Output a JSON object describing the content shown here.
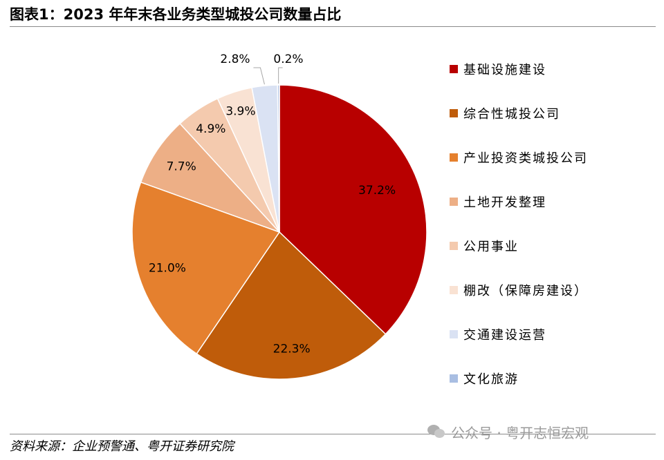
{
  "title": "图表1：2023 年年末各业务类型城投公司数量占比",
  "source": "资料来源：企业预警通、粤开证券研究院",
  "watermark": "公众号 · 粤开志恒宏观",
  "chart_data": {
    "type": "pie",
    "title": "图表1：2023 年年末各业务类型城投公司数量占比",
    "unit": "%",
    "legend_position": "right",
    "categories": [
      "基础设施建设",
      "综合性城投公司",
      "产业投资类城投公司",
      "土地开发整理",
      "公用事业",
      "棚改（保障房建设）",
      "交通建设运营",
      "文化旅游"
    ],
    "values": [
      37.2,
      22.3,
      21.0,
      7.7,
      4.9,
      3.9,
      2.8,
      0.2
    ],
    "data_labels": [
      "37.2%",
      "22.3%",
      "21.0%",
      "7.7%",
      "4.9%",
      "3.9%",
      "2.8%",
      "0.2%"
    ],
    "colors": [
      "#B80000",
      "#BF5C0A",
      "#E5802E",
      "#EDAF86",
      "#F4CAAE",
      "#F9E2D3",
      "#DAE2F3",
      "#A9BEE2"
    ]
  }
}
